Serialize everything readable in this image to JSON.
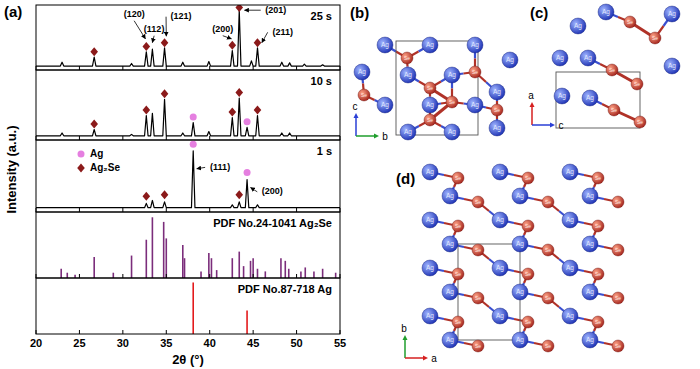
{
  "chart_data": [
    {
      "type": "line",
      "title": "25 s",
      "color": "#000000",
      "xlim": [
        20,
        55
      ],
      "xticks": [
        20,
        25,
        30,
        35,
        40,
        45,
        50,
        55
      ],
      "ylim": [
        0,
        100
      ],
      "tick_labels": false,
      "x": [
        20,
        22.8,
        23.0,
        23.2,
        26.5,
        26.7,
        26.9,
        30.8,
        31.0,
        31.2,
        32.5,
        32.7,
        32.9,
        33.2,
        33.4,
        33.6,
        34.6,
        34.8,
        35.0,
        36.7,
        36.9,
        37.1,
        39.7,
        39.9,
        40.1,
        42.4,
        42.6,
        42.8,
        43.2,
        43.4,
        43.6,
        44.6,
        44.8,
        45.0,
        45.3,
        45.5,
        45.7,
        48.1,
        48.3,
        48.5,
        49.0,
        49.2,
        49.4,
        50.7,
        50.9,
        51.1,
        52.8,
        53.0,
        53.2,
        55
      ],
      "values": [
        6,
        6,
        12,
        6,
        6,
        20,
        6,
        6,
        10,
        6,
        6,
        28,
        6,
        6,
        32,
        6,
        6,
        34,
        6,
        6,
        12,
        6,
        6,
        13,
        6,
        6,
        30,
        6,
        6,
        92,
        6,
        6,
        14,
        6,
        6,
        34,
        6,
        6,
        12,
        6,
        6,
        11,
        6,
        6,
        9,
        6,
        6,
        8,
        6,
        6
      ],
      "peak_markers": [
        {
          "x": 26.7,
          "y": 28,
          "phase": "Ag₂Se"
        },
        {
          "x": 32.7,
          "y": 36,
          "phase": "Ag₂Se"
        },
        {
          "x": 34.8,
          "y": 42,
          "phase": "Ag₂Se"
        },
        {
          "x": 42.6,
          "y": 38,
          "phase": "Ag₂Se"
        },
        {
          "x": 43.4,
          "y": 96,
          "phase": "Ag₂Se"
        },
        {
          "x": 45.5,
          "y": 42,
          "phase": "Ag₂Se"
        }
      ],
      "annotations": [
        {
          "text": "(120)",
          "text_x": 31.3,
          "text_y": 85,
          "x": 32.6,
          "y": 48
        },
        {
          "text": "(112)",
          "text_x": 33.6,
          "text_y": 62,
          "x": 33.4,
          "y": 42
        },
        {
          "text": "(121)",
          "text_x": 36.7,
          "text_y": 82,
          "x": 35.0,
          "y": 52
        },
        {
          "text": "(200)",
          "text_x": 41.5,
          "text_y": 62,
          "x": 42.5,
          "y": 48
        },
        {
          "text": "(201)",
          "text_x": 47.6,
          "text_y": 92,
          "x": 44.0,
          "y": 92
        },
        {
          "text": "(211)",
          "text_x": 48.4,
          "text_y": 58,
          "x": 46.0,
          "y": 42
        }
      ]
    },
    {
      "type": "line",
      "title": "10 s",
      "color": "#000000",
      "xlim": [
        20,
        55
      ],
      "xticks": [
        20,
        25,
        30,
        35,
        40,
        45,
        50,
        55
      ],
      "ylim": [
        0,
        100
      ],
      "tick_labels": false,
      "x": [
        20,
        22.8,
        23.0,
        23.2,
        26.5,
        26.7,
        26.9,
        30.8,
        31.0,
        31.2,
        32.5,
        32.7,
        32.9,
        33.2,
        33.4,
        33.6,
        34.6,
        34.8,
        35.0,
        36.7,
        36.9,
        37.1,
        37.9,
        38.1,
        38.3,
        39.7,
        39.9,
        40.1,
        42.4,
        42.6,
        42.8,
        43.2,
        43.4,
        43.6,
        44.1,
        44.3,
        44.5,
        45.3,
        45.5,
        45.7,
        48.1,
        48.3,
        48.5,
        49.0,
        49.2,
        49.4,
        55
      ],
      "values": [
        6,
        6,
        10,
        6,
        6,
        15,
        6,
        6,
        8,
        6,
        6,
        35,
        6,
        6,
        38,
        6,
        6,
        58,
        6,
        6,
        10,
        6,
        6,
        25,
        6,
        6,
        12,
        6,
        6,
        32,
        6,
        6,
        60,
        6,
        6,
        18,
        6,
        6,
        35,
        6,
        6,
        10,
        6,
        6,
        10,
        6,
        6
      ],
      "peak_markers": [
        {
          "x": 26.7,
          "y": 23,
          "phase": "Ag₂Se"
        },
        {
          "x": 32.7,
          "y": 43,
          "phase": "Ag₂Se"
        },
        {
          "x": 34.8,
          "y": 66,
          "phase": "Ag₂Se"
        },
        {
          "x": 38.1,
          "y": 33,
          "phase": "Ag"
        },
        {
          "x": 42.6,
          "y": 40,
          "phase": "Ag₂Se"
        },
        {
          "x": 43.4,
          "y": 68,
          "phase": "Ag₂Se"
        },
        {
          "x": 44.3,
          "y": 26,
          "phase": "Ag"
        },
        {
          "x": 45.5,
          "y": 43,
          "phase": "Ag₂Se"
        }
      ],
      "annotations": []
    },
    {
      "type": "line",
      "title": "1 s",
      "color": "#000000",
      "xlim": [
        20,
        55
      ],
      "xticks": [
        20,
        25,
        30,
        35,
        40,
        45,
        50,
        55
      ],
      "ylim": [
        0,
        100
      ],
      "tick_labels": false,
      "legend": "upper left",
      "x": [
        20,
        32.5,
        32.7,
        32.9,
        33.2,
        33.4,
        33.6,
        34.6,
        34.8,
        35.0,
        37.9,
        38.1,
        38.3,
        42.4,
        42.6,
        42.8,
        43.2,
        43.4,
        43.6,
        44.1,
        44.3,
        44.5,
        45.3,
        45.5,
        45.7,
        55
      ],
      "values": [
        6,
        6,
        12,
        6,
        6,
        16,
        6,
        6,
        14,
        6,
        6,
        85,
        6,
        6,
        10,
        6,
        6,
        14,
        6,
        6,
        45,
        6,
        6,
        10,
        6,
        6
      ],
      "peak_markers": [
        {
          "x": 32.7,
          "y": 22,
          "phase": "Ag₂Se"
        },
        {
          "x": 34.8,
          "y": 24,
          "phase": "Ag₂Se"
        },
        {
          "x": 38.1,
          "y": 94,
          "phase": "Ag"
        },
        {
          "x": 43.4,
          "y": 24,
          "phase": "Ag₂Se"
        },
        {
          "x": 44.3,
          "y": 55,
          "phase": "Ag"
        }
      ],
      "annotations": [
        {
          "text": "(111)",
          "text_x": 41.2,
          "text_y": 62,
          "x": 38.5,
          "y": 60
        },
        {
          "text": "(200)",
          "text_x": 47.2,
          "text_y": 28,
          "x": 44.7,
          "y": 34
        }
      ]
    },
    {
      "type": "bar",
      "title": "PDF No.24-1041 Ag₂Se",
      "color": "#7b2d7b",
      "xlim": [
        20,
        55
      ],
      "xticks": [
        20,
        25,
        30,
        35,
        40,
        45,
        50,
        55
      ],
      "ylim": [
        0,
        100
      ],
      "tick_labels": false,
      "x": [
        22.9,
        23.6,
        24.5,
        26.7,
        28.9,
        31.0,
        32.7,
        33.4,
        34.7,
        35.0,
        36.9,
        37.1,
        39.0,
        39.9,
        40.2,
        40.8,
        42.6,
        43.4,
        43.9,
        44.7,
        45.0,
        45.5,
        46.4,
        48.2,
        48.7,
        49.1,
        50.5,
        51.0,
        52.0,
        53.0,
        54.5
      ],
      "values": [
        14,
        8,
        5,
        32,
        8,
        34,
        58,
        92,
        85,
        60,
        50,
        30,
        10,
        38,
        30,
        12,
        30,
        40,
        18,
        26,
        30,
        14,
        10,
        30,
        26,
        14,
        10,
        16,
        10,
        14,
        8
      ]
    },
    {
      "type": "bar",
      "title": "PDF No.87-718 Ag",
      "color": "#e31a1c",
      "xlim": [
        20,
        55
      ],
      "xticks": [
        20,
        25,
        30,
        35,
        40,
        45,
        50,
        55
      ],
      "ylim": [
        0,
        100
      ],
      "tick_labels": "x",
      "x": [
        38.1,
        44.3
      ],
      "values": [
        92,
        42
      ]
    }
  ],
  "figure": {
    "panel_label": "(a)",
    "ylabel": "Intensity (a.u.)",
    "xlabel": "2θ (°)",
    "phases": [
      {
        "name": "Ag",
        "color": "#e57fe0",
        "marker": "circle"
      },
      {
        "name": "Ag₂Se",
        "color": "#8b1a1a",
        "marker": "diamond"
      }
    ]
  },
  "atom_labels": [
    "Ag",
    "Se"
  ],
  "structures": [
    {
      "label": "(b)",
      "axes": [
        {
          "label": "c",
          "color": "#2a3fd6"
        },
        {
          "label": "b",
          "color": "#1f9e2c"
        }
      ]
    },
    {
      "label": "(c)",
      "axes": [
        {
          "label": "a",
          "color": "#d62020"
        },
        {
          "label": "c",
          "color": "#2a3fd6"
        }
      ]
    },
    {
      "label": "(d)",
      "axes": [
        {
          "label": "b",
          "color": "#1f9e2c"
        },
        {
          "label": "a",
          "color": "#d62020"
        }
      ]
    }
  ]
}
